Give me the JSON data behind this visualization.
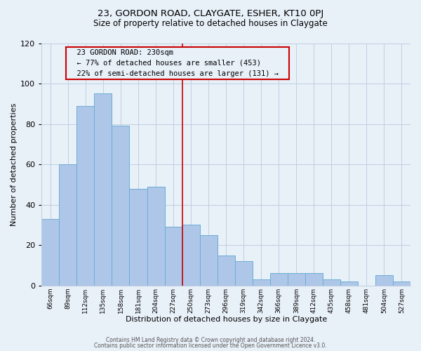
{
  "title": "23, GORDON ROAD, CLAYGATE, ESHER, KT10 0PJ",
  "subtitle": "Size of property relative to detached houses in Claygate",
  "xlabel": "Distribution of detached houses by size in Claygate",
  "ylabel": "Number of detached properties",
  "bar_labels": [
    "66sqm",
    "89sqm",
    "112sqm",
    "135sqm",
    "158sqm",
    "181sqm",
    "204sqm",
    "227sqm",
    "250sqm",
    "273sqm",
    "296sqm",
    "319sqm",
    "342sqm",
    "366sqm",
    "389sqm",
    "412sqm",
    "435sqm",
    "458sqm",
    "481sqm",
    "504sqm",
    "527sqm"
  ],
  "bar_values": [
    33,
    60,
    89,
    95,
    79,
    48,
    49,
    29,
    30,
    25,
    15,
    12,
    3,
    6,
    6,
    6,
    3,
    2,
    0,
    5,
    2
  ],
  "property_line_index": 7,
  "annotation_title": "23 GORDON ROAD: 230sqm",
  "annotation_line1": "← 77% of detached houses are smaller (453)",
  "annotation_line2": "22% of semi-detached houses are larger (131) →",
  "bar_color": "#aec6e8",
  "bar_edge_color": "#6baed6",
  "line_color": "#cc0000",
  "box_edge_color": "#cc0000",
  "background_color": "#e8f0f8",
  "ylim": [
    0,
    120
  ],
  "yticks": [
    0,
    20,
    40,
    60,
    80,
    100,
    120
  ],
  "footer1": "Contains HM Land Registry data © Crown copyright and database right 2024.",
  "footer2": "Contains public sector information licensed under the Open Government Licence v3.0."
}
